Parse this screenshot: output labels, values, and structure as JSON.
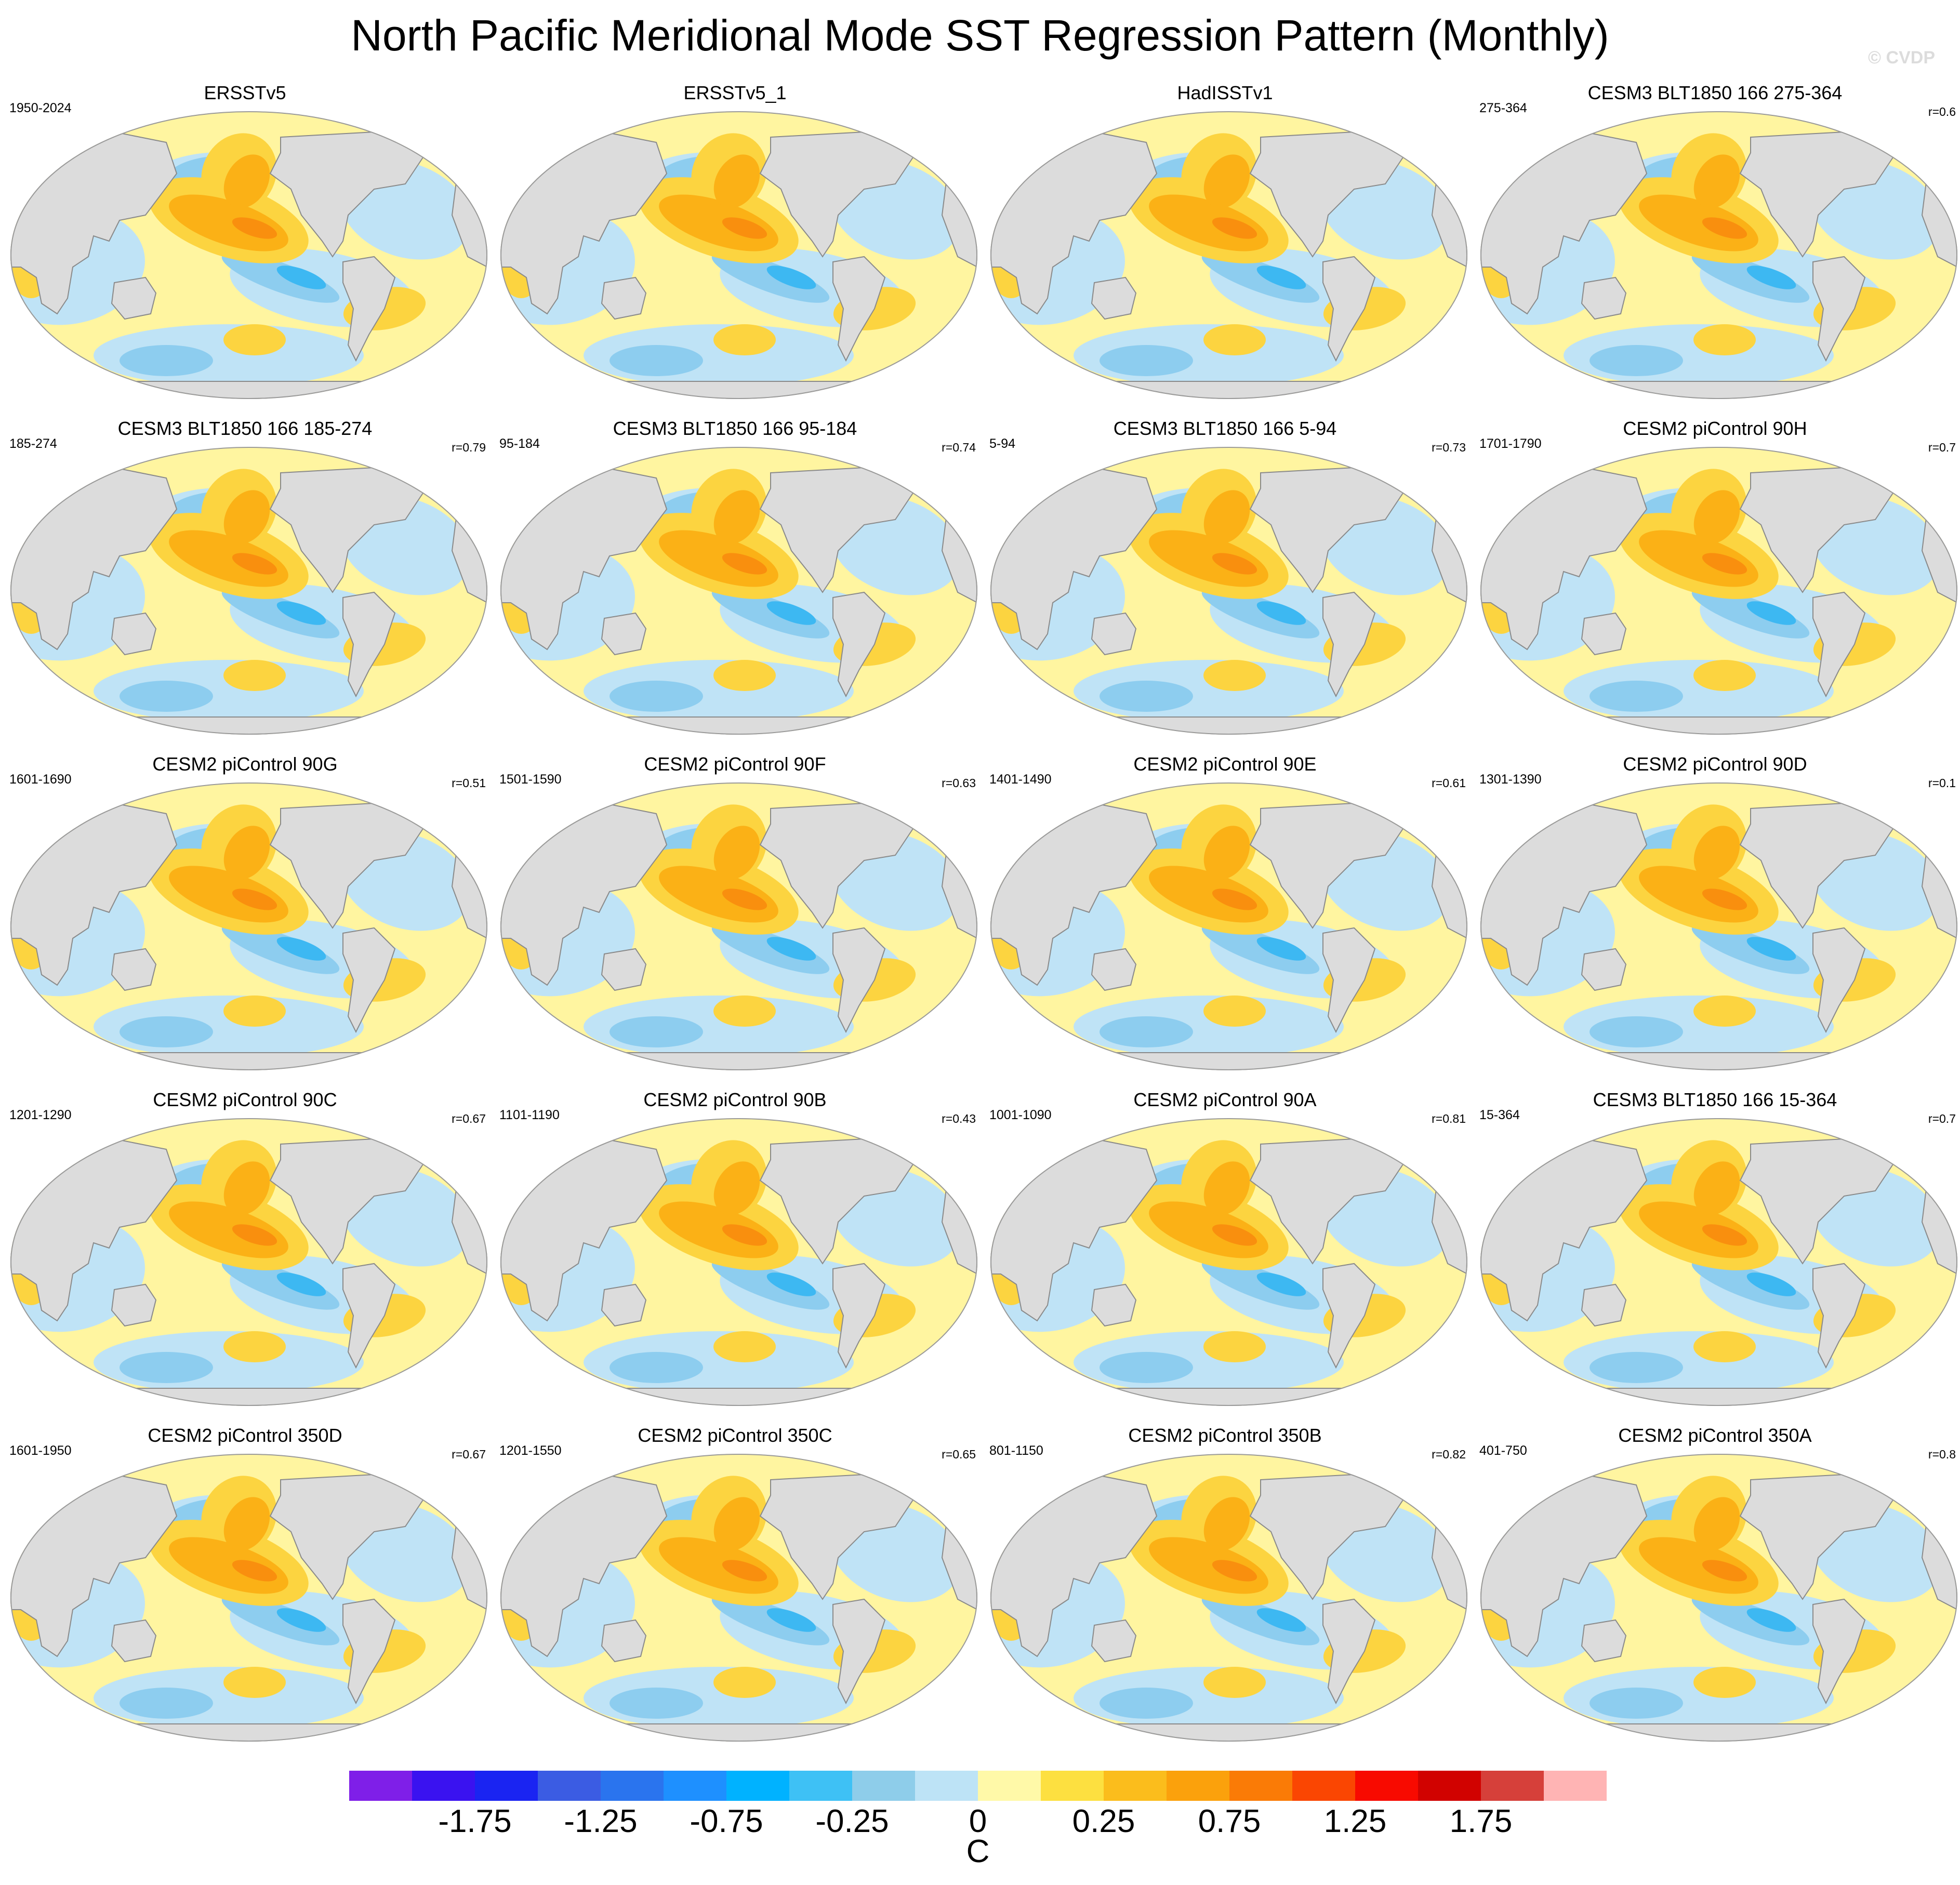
{
  "title": "North Pacific Meridional Mode SST Regression Pattern (Monthly)",
  "watermark": "© CVDP",
  "colors": {
    "land": "#dcdcdc",
    "coast": "#8a8a8a",
    "neg_light": "#bfe3f6",
    "neg_mid": "#8dcdef",
    "neg_strong": "#3db8f2",
    "pos_light": "#fff5a0",
    "pos_mid": "#fcd440",
    "pos_strong": "#fbb116",
    "pos_vstrong": "#f98f0e"
  },
  "chart_data": {
    "type": "heatmap",
    "panels": [
      {
        "title": "ERSSTv5",
        "period": "1950-2024",
        "corr": ""
      },
      {
        "title": "ERSSTv5_1",
        "period": "",
        "corr": ""
      },
      {
        "title": "HadISSTv1",
        "period": "",
        "corr": ""
      },
      {
        "title": "CESM3 BLT1850 166 275-364",
        "period": "275-364",
        "corr": "r=0.6"
      },
      {
        "title": "CESM3 BLT1850 166 185-274",
        "period": "185-274",
        "corr": "r=0.79"
      },
      {
        "title": "CESM3 BLT1850 166 95-184",
        "period": "95-184",
        "corr": "r=0.74"
      },
      {
        "title": "CESM3 BLT1850 166 5-94",
        "period": "5-94",
        "corr": "r=0.73"
      },
      {
        "title": "CESM2 piControl 90H",
        "period": "1701-1790",
        "corr": "r=0.7"
      },
      {
        "title": "CESM2 piControl 90G",
        "period": "1601-1690",
        "corr": "r=0.51"
      },
      {
        "title": "CESM2 piControl 90F",
        "period": "1501-1590",
        "corr": "r=0.63"
      },
      {
        "title": "CESM2 piControl 90E",
        "period": "1401-1490",
        "corr": "r=0.61"
      },
      {
        "title": "CESM2 piControl 90D",
        "period": "1301-1390",
        "corr": "r=0.1"
      },
      {
        "title": "CESM2 piControl 90C",
        "period": "1201-1290",
        "corr": "r=0.67"
      },
      {
        "title": "CESM2 piControl 90B",
        "period": "1101-1190",
        "corr": "r=0.43"
      },
      {
        "title": "CESM2 piControl 90A",
        "period": "1001-1090",
        "corr": "r=0.81"
      },
      {
        "title": "CESM3 BLT1850 166 15-364",
        "period": "15-364",
        "corr": "r=0.7"
      },
      {
        "title": "CESM2 piControl 350D",
        "period": "1601-1950",
        "corr": "r=0.67"
      },
      {
        "title": "CESM2 piControl 350C",
        "period": "1201-1550",
        "corr": "r=0.65"
      },
      {
        "title": "CESM2 piControl 350B",
        "period": "801-1150",
        "corr": "r=0.82"
      },
      {
        "title": "CESM2 piControl 350A",
        "period": "401-750",
        "corr": "r=0.8"
      }
    ],
    "colorbar": {
      "colors": [
        "#7f1fe8",
        "#3a12f0",
        "#1a24f2",
        "#3b5ce3",
        "#2a74ee",
        "#1e90ff",
        "#00b2ff",
        "#3ec1f5",
        "#8ecdea",
        "#bde3f6",
        "#fff9a8",
        "#fde040",
        "#fbbd1c",
        "#fba10c",
        "#fa7b06",
        "#fa4602",
        "#f80a00",
        "#d10200",
        "#d6403a",
        "#ffb4b4"
      ],
      "tick_labels": [
        "-1.75",
        "-1.25",
        "-0.75",
        "-0.25",
        "0",
        "0.25",
        "0.75",
        "1.25",
        "1.75"
      ],
      "tick_after_box": [
        2,
        4,
        6,
        8,
        10,
        12,
        14,
        16,
        18
      ],
      "unit": "C"
    }
  }
}
